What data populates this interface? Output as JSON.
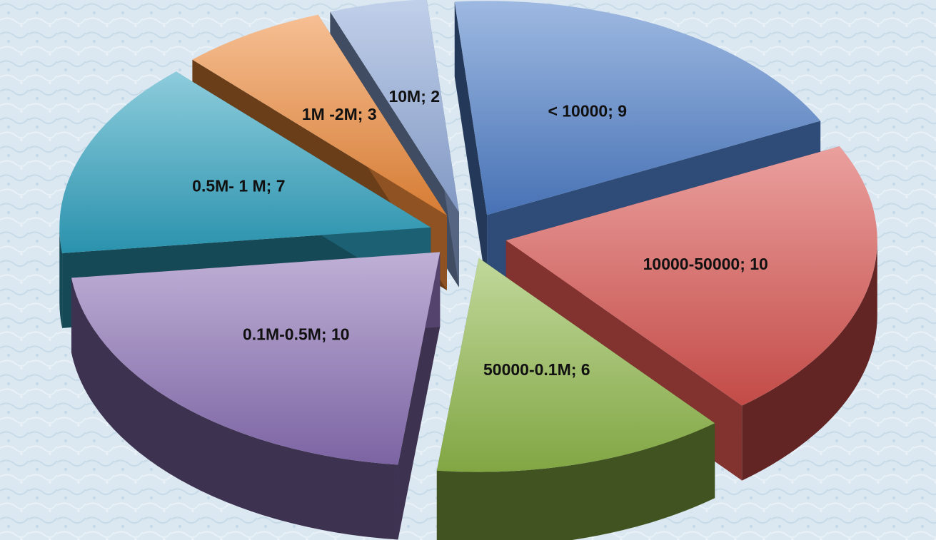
{
  "chart_data": {
    "type": "pie",
    "style": "3d-exploded",
    "title": "",
    "slices": [
      {
        "label": "< 10000; 9",
        "category": "< 10000",
        "value": 9,
        "color": "#4f7fc9"
      },
      {
        "label": "10000-50000; 10",
        "category": "10000-50000",
        "value": 10,
        "color": "#d9534f"
      },
      {
        "label": "50000-0.1M; 6",
        "category": "50000-0.1M",
        "value": 6,
        "color": "#8fb84a"
      },
      {
        "label": "0.1M-0.5M; 10",
        "category": "0.1M-0.5M",
        "value": 10,
        "color": "#8a6fb5"
      },
      {
        "label": "0.5M- 1 M; 7",
        "category": "0.5M- 1 M",
        "value": 7,
        "color": "#2fa2c0"
      },
      {
        "label": "1M -2M; 3",
        "category": "1M -2M",
        "value": 3,
        "color": "#ee8a3a"
      },
      {
        "label": "10M; 2",
        "category": "10M",
        "value": 2,
        "color": "#8fa9d9"
      }
    ],
    "background": "#dbe8f2"
  }
}
